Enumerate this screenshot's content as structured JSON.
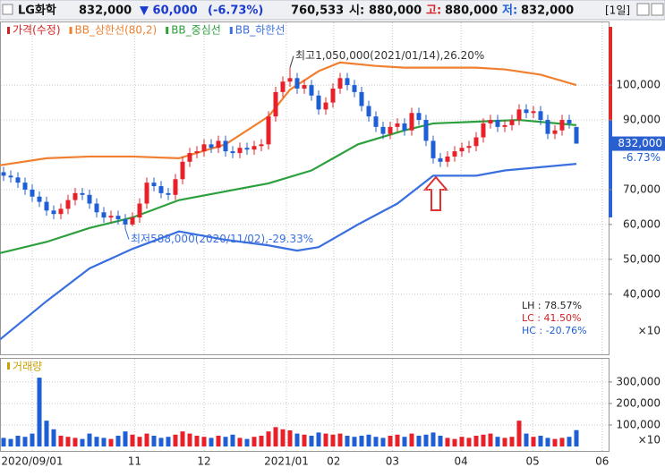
{
  "header": {
    "name": "LG화학",
    "price": "832,000",
    "change": "▼ 60,000",
    "change_pct": "(-6.73%)",
    "volume": "760,533",
    "open_label": "시:",
    "open": "880,000",
    "high_label": "고:",
    "high": "880,000",
    "low_label": "저:",
    "low": "832,000",
    "period": "[1일]"
  },
  "chart_data": [
    {
      "type": "candlestick",
      "name": "가격(수정)",
      "color": "#d42020",
      "up_color": "#e8202a",
      "down_color": "#1f5fd6",
      "xlim": [
        -0.5,
        84.5
      ],
      "xticks": [
        {
          "value": 4,
          "label": "2020/09/01"
        },
        {
          "value": 18.3,
          "label": "11"
        },
        {
          "value": 28,
          "label": "12"
        },
        {
          "value": 39.5,
          "label": "2021/01"
        },
        {
          "value": 46.1,
          "label": "02"
        },
        {
          "value": 54.3,
          "label": "03"
        },
        {
          "value": 63.9,
          "label": "04"
        },
        {
          "value": 73.9,
          "label": "05"
        },
        {
          "value": 83.6,
          "label": "06"
        }
      ],
      "ylim": [
        23000,
        118000
      ],
      "yticks": [
        {
          "value": 40000,
          "label": "40,000"
        },
        {
          "value": 50000,
          "label": "50,000"
        },
        {
          "value": 60000,
          "label": "60,000"
        },
        {
          "value": 70000,
          "label": "70,000"
        },
        {
          "value": 90000,
          "label": "90,000"
        },
        {
          "value": 100000,
          "label": "100,000"
        }
      ],
      "y_multiplier": "×10",
      "grid": true,
      "open": [
        75000,
        74000,
        73500,
        72000,
        70000,
        68000,
        66500,
        64000,
        63000,
        64500,
        67000,
        69000,
        68500,
        66000,
        63500,
        62000,
        62500,
        61500,
        60000,
        62000,
        66000,
        72000,
        71000,
        69000,
        68500,
        73000,
        78000,
        80500,
        81000,
        83000,
        82000,
        84000,
        81000,
        80500,
        82000,
        81500,
        82500,
        83000,
        91000,
        98000,
        101000,
        102000,
        99000,
        100000,
        97000,
        93000,
        95000,
        99000,
        102000,
        100000,
        98000,
        94000,
        91000,
        88000,
        86000,
        88000,
        89000,
        87000,
        92000,
        90000,
        84000,
        79000,
        78000,
        79500,
        81000,
        82000,
        82500,
        85000,
        89000,
        90000,
        88000,
        88500,
        90000,
        93000,
        92000,
        92500,
        90000,
        86000,
        87000,
        90000,
        88000
      ],
      "high": [
        76500,
        75500,
        75000,
        73500,
        71500,
        69500,
        68000,
        65500,
        66000,
        68500,
        70500,
        70500,
        70000,
        67500,
        65000,
        64000,
        64000,
        63000,
        63500,
        67500,
        73500,
        73500,
        72500,
        70500,
        74500,
        79500,
        82000,
        82500,
        84500,
        84500,
        85500,
        85500,
        82500,
        83500,
        83500,
        84000,
        84500,
        92500,
        99500,
        102500,
        105000,
        103500,
        101500,
        101500,
        98500,
        96500,
        100500,
        103500,
        103500,
        101500,
        99500,
        95500,
        92500,
        89500,
        89500,
        90500,
        90500,
        93500,
        93500,
        91500,
        85500,
        80500,
        81000,
        82500,
        83500,
        84000,
        86500,
        90500,
        91500,
        91500,
        90000,
        91500,
        94500,
        94500,
        94000,
        94000,
        91500,
        88500,
        91500,
        91500,
        88000
      ],
      "low": [
        72500,
        72000,
        70500,
        68500,
        66500,
        65000,
        62500,
        61500,
        61500,
        63000,
        65500,
        67000,
        64500,
        62000,
        60500,
        60500,
        60000,
        58800,
        59500,
        60500,
        64500,
        69500,
        67500,
        67000,
        67000,
        71500,
        76500,
        79000,
        79500,
        80500,
        80500,
        79500,
        79000,
        79000,
        80000,
        80000,
        81000,
        81500,
        89500,
        96500,
        99500,
        97500,
        97500,
        95500,
        91500,
        91500,
        93500,
        97500,
        98500,
        96500,
        92500,
        89500,
        86500,
        84500,
        84500,
        86500,
        85500,
        85500,
        88500,
        82500,
        77500,
        76500,
        76500,
        78000,
        79500,
        80500,
        81000,
        83500,
        87500,
        86500,
        86500,
        87000,
        88500,
        90500,
        90500,
        88500,
        84500,
        84500,
        85500,
        87500,
        83200
      ],
      "close": [
        74000,
        73500,
        72000,
        70000,
        68000,
        66500,
        64000,
        63000,
        64500,
        67000,
        69000,
        68500,
        66000,
        63500,
        62000,
        62500,
        61500,
        60000,
        62000,
        66000,
        72000,
        71000,
        69000,
        68500,
        73000,
        78000,
        80500,
        81000,
        83000,
        82000,
        84000,
        81000,
        80500,
        82000,
        81500,
        82500,
        83000,
        91000,
        98000,
        101000,
        102000,
        99000,
        100000,
        97000,
        93000,
        95000,
        99000,
        102000,
        100000,
        98000,
        94000,
        91000,
        88000,
        86000,
        88000,
        89000,
        87000,
        92000,
        90000,
        84000,
        79000,
        78000,
        79500,
        81000,
        82000,
        82500,
        85000,
        89000,
        90000,
        88000,
        88500,
        90000,
        93000,
        92000,
        92500,
        90000,
        86000,
        87000,
        90000,
        89000,
        83200
      ],
      "series": [
        {
          "name": "BB_상한선(80,2)",
          "color": "#f08030",
          "x": [
            -0.5,
            6,
            12,
            18,
            24.5,
            31,
            37,
            40,
            44,
            47,
            52,
            56,
            62,
            66,
            70,
            75,
            80
          ],
          "values": [
            77000,
            79000,
            79500,
            79500,
            79000,
            83000,
            91000,
            98700,
            104000,
            106500,
            105500,
            105000,
            105000,
            105000,
            104500,
            103000,
            100000
          ]
        },
        {
          "name": "BB_중심선",
          "color": "#2ca03c",
          "x": [
            -0.5,
            6,
            12,
            18,
            24.5,
            31,
            37,
            43,
            49.5,
            56,
            60,
            66,
            72,
            80
          ],
          "values": [
            51800,
            55000,
            59000,
            62000,
            67000,
            69500,
            71800,
            75500,
            83000,
            87000,
            89000,
            89500,
            90000,
            88500
          ]
        },
        {
          "name": "BB_하한선",
          "color": "#3a6fe0",
          "x": [
            -0.5,
            6,
            12,
            18,
            24.5,
            31,
            37,
            41,
            44,
            49.5,
            55,
            60,
            66,
            70,
            80
          ],
          "values": [
            27000,
            38000,
            47400,
            53000,
            58000,
            55600,
            54000,
            52500,
            53500,
            60000,
            66000,
            74000,
            74000,
            75500,
            77400
          ]
        }
      ],
      "annotations": [
        {
          "text": "최고1,050,000(2021/01/14),26.20%",
          "x": 40,
          "y": 105000,
          "color": "#333333"
        },
        {
          "text": "최저588,000(2020/11/02),-29.33%",
          "x": 17,
          "y": 58800,
          "color": "#3a6fe0"
        }
      ],
      "stats": [
        {
          "text": "LH :  78.57%",
          "color": "#222222"
        },
        {
          "text": "LC :  41.50%",
          "color": "#d42020"
        },
        {
          "text": "HC : -20.76%",
          "color": "#1f5fd6"
        }
      ],
      "price_tag": {
        "label": "832,000",
        "change": "-6.73%"
      }
    },
    {
      "type": "bar",
      "title": "거래량",
      "color": "#c8a000",
      "values": [
        40000,
        35000,
        50000,
        45000,
        60000,
        320000,
        120000,
        80000,
        50000,
        45000,
        40000,
        35000,
        60000,
        45000,
        40000,
        35000,
        50000,
        70000,
        55000,
        45000,
        60000,
        50000,
        40000,
        45000,
        55000,
        70000,
        60000,
        50000,
        45000,
        40000,
        50000,
        45000,
        55000,
        40000,
        35000,
        45000,
        50000,
        70000,
        90000,
        80000,
        75000,
        60000,
        55000,
        50000,
        65000,
        60000,
        55000,
        60000,
        50000,
        45000,
        50000,
        55000,
        45000,
        40000,
        50000,
        55000,
        45000,
        60000,
        50000,
        55000,
        65000,
        50000,
        40000,
        35000,
        45000,
        40000,
        50000,
        55000,
        60000,
        45000,
        40000,
        45000,
        120000,
        60000,
        45000,
        50000,
        40000,
        35000,
        40000,
        45000,
        76053
      ],
      "ylim": [
        0,
        412000
      ],
      "yticks": [
        {
          "value": 100000,
          "label": "100,000"
        },
        {
          "value": 200000,
          "label": "200,000"
        },
        {
          "value": 300000,
          "label": "300,000"
        }
      ],
      "y_multiplier": "×10",
      "grid": true
    }
  ]
}
